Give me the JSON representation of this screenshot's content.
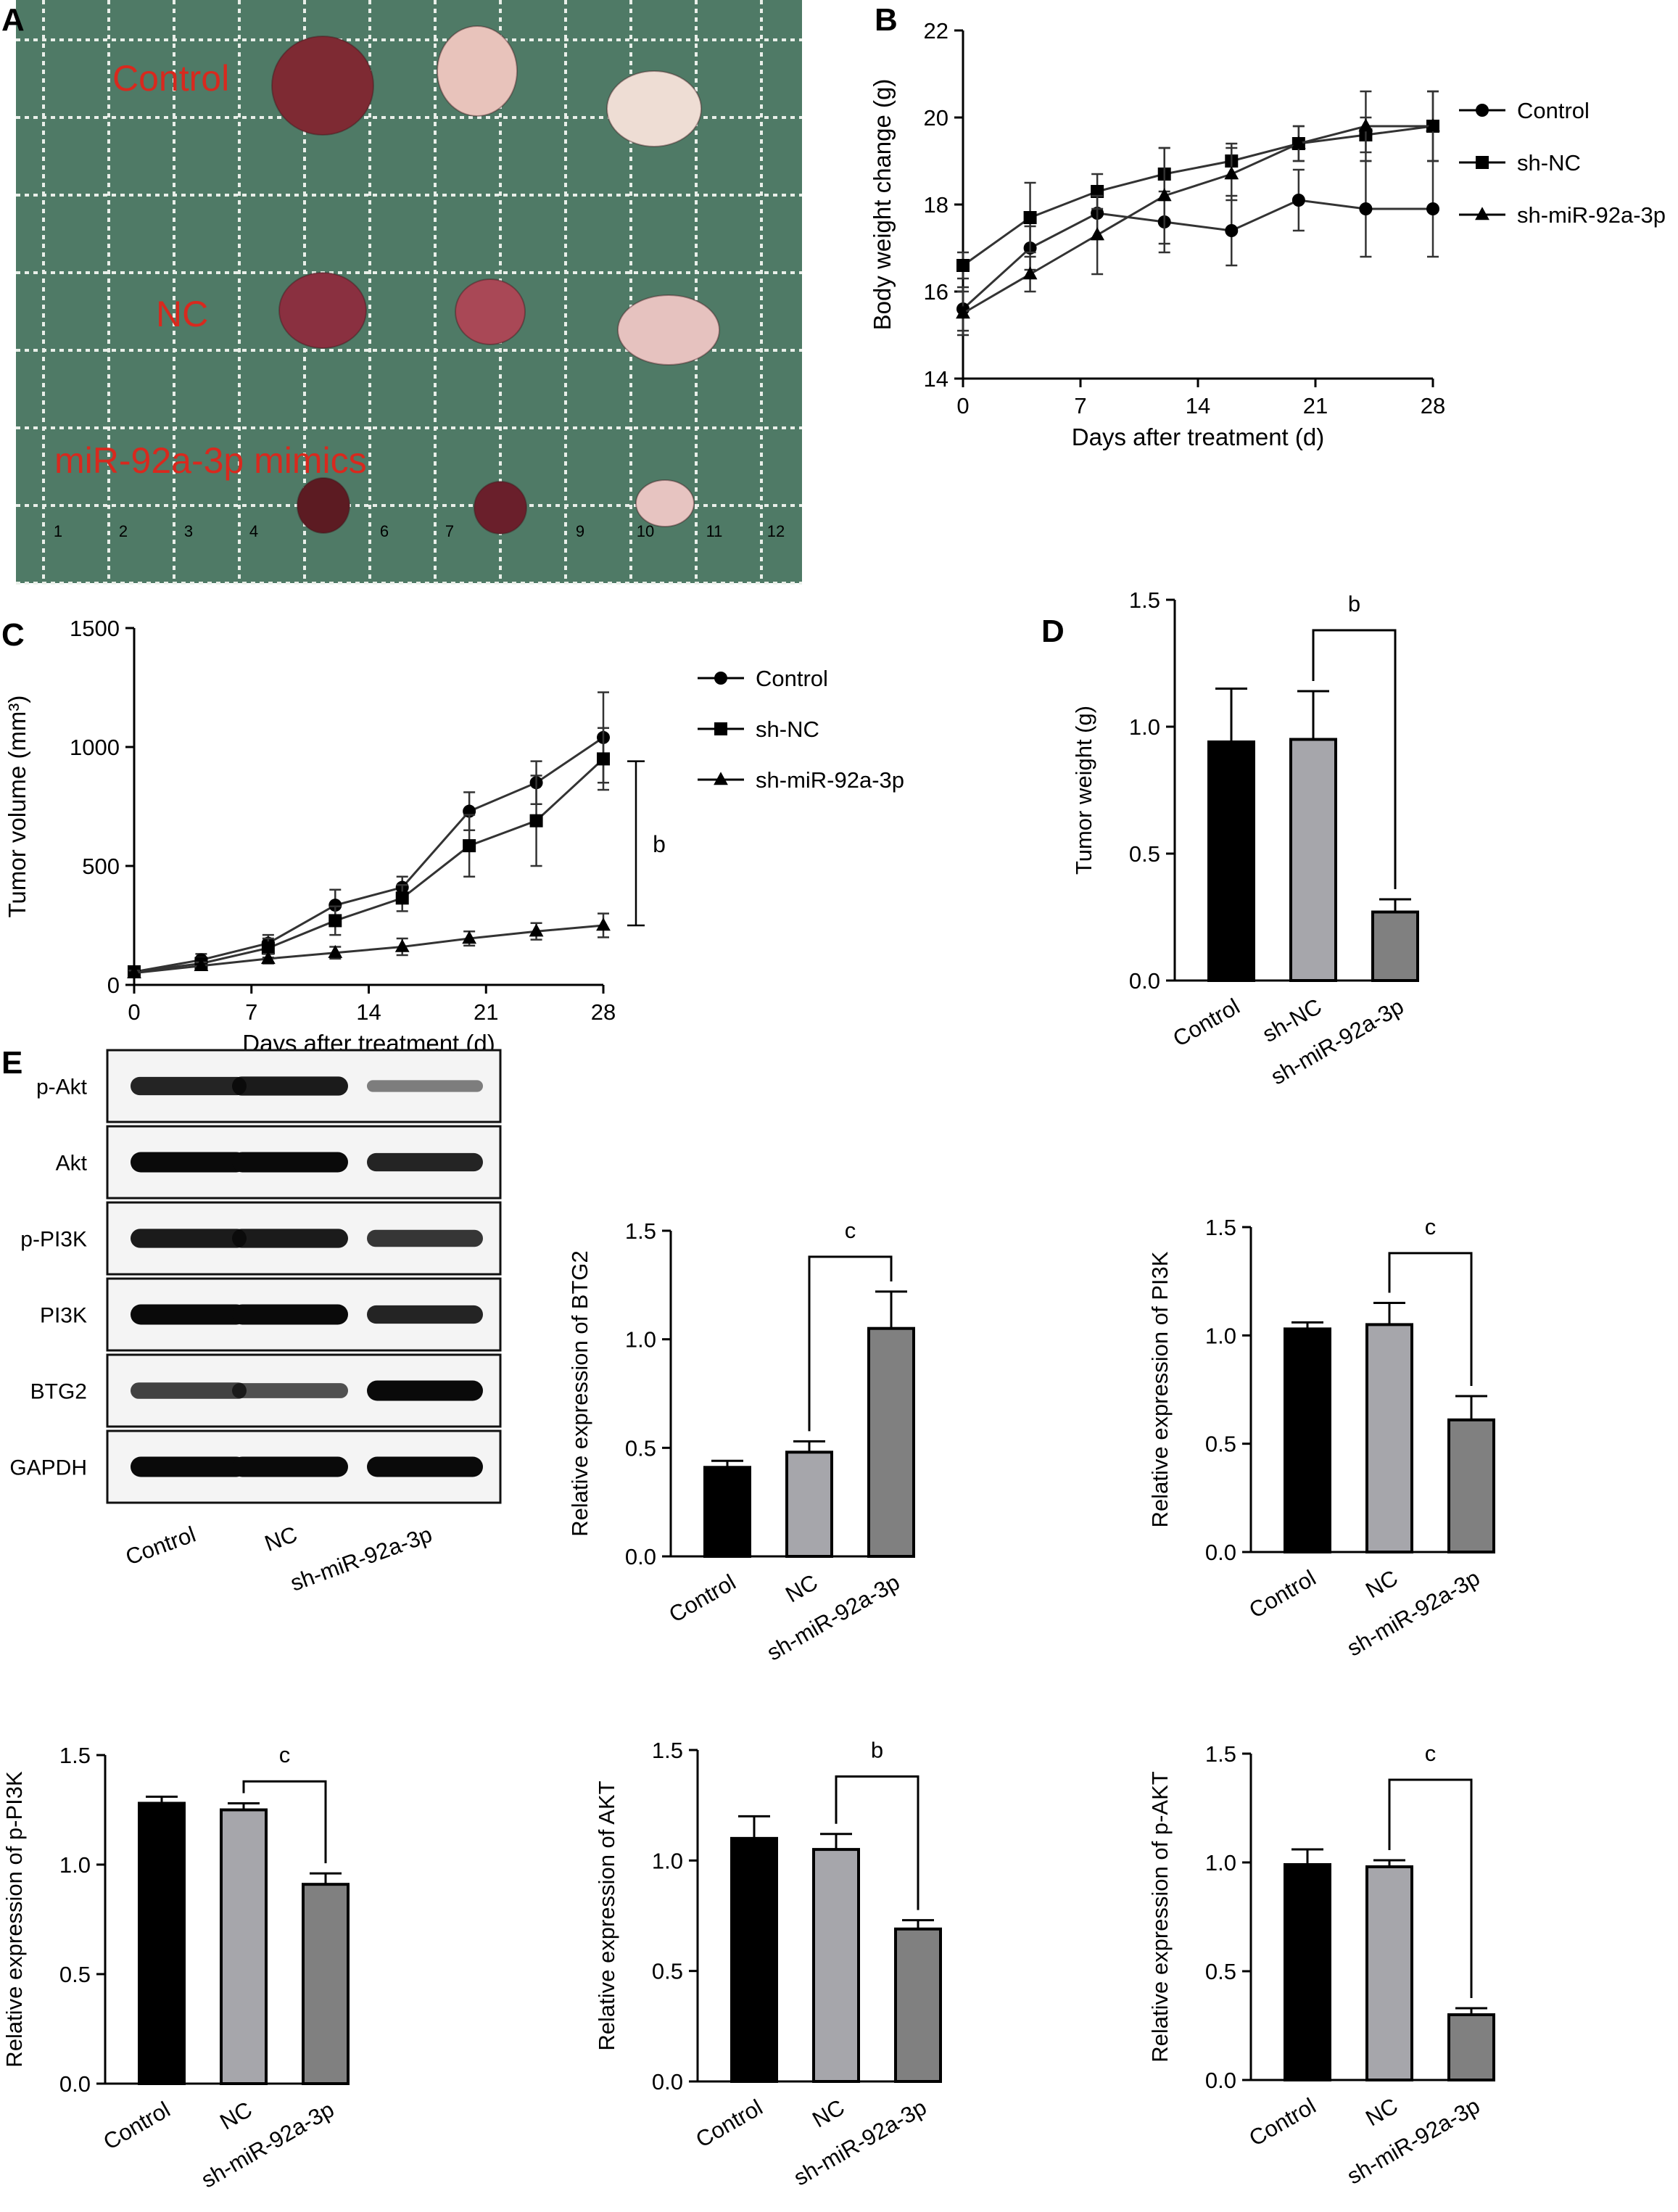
{
  "panel_letters": {
    "A": "A",
    "B": "B",
    "C": "C",
    "D": "D",
    "E": "E"
  },
  "photo": {
    "background_color": "#4f7a66",
    "labels": {
      "control": "Control",
      "nc": "NC",
      "mimics": "miR-92a-3p mimics"
    },
    "label_color": "#d8291e",
    "ruler_numbers": [
      "1",
      "2",
      "3",
      "4",
      "6",
      "7",
      "9",
      "10",
      "11",
      "12"
    ]
  },
  "western_blot": {
    "rows": [
      "p-Akt",
      "Akt",
      "p-PI3K",
      "PI3K",
      "BTG2",
      "GAPDH"
    ],
    "lanes": [
      "Control",
      "NC",
      "sh-miR-92a-3p"
    ],
    "relative_intensity": [
      [
        0.85,
        0.9,
        0.35
      ],
      [
        1.0,
        1.0,
        0.85
      ],
      [
        0.9,
        0.9,
        0.75
      ],
      [
        1.0,
        1.0,
        0.85
      ],
      [
        0.7,
        0.6,
        1.0
      ],
      [
        1.0,
        1.0,
        1.0
      ]
    ]
  },
  "chart_data": [
    {
      "id": "B",
      "type": "line",
      "xlabel": "Days after treatment (d)",
      "ylabel": "Body weight change (g)",
      "xlim": [
        0,
        28
      ],
      "ylim": [
        14,
        22
      ],
      "xticks": [
        "0",
        "7",
        "14",
        "21",
        "28"
      ],
      "yticks": [
        "14",
        "16",
        "18",
        "20",
        "22"
      ],
      "legend": "right",
      "x": [
        0,
        4,
        8,
        12,
        16,
        20,
        24,
        28
      ],
      "series": [
        {
          "name": "Control",
          "marker": "circle",
          "values": [
            15.6,
            17.0,
            17.8,
            17.6,
            17.4,
            18.1,
            17.9,
            17.9
          ],
          "errors": [
            0.5,
            0.5,
            0.6,
            0.7,
            0.8,
            0.7,
            1.1,
            1.1
          ]
        },
        {
          "name": "sh-NC",
          "marker": "square",
          "values": [
            16.6,
            17.7,
            18.3,
            18.7,
            19.0,
            19.4,
            19.6,
            19.8
          ],
          "errors": [
            0.3,
            0.8,
            0.4,
            0.6,
            0.4,
            0.4,
            0.4,
            0.8
          ]
        },
        {
          "name": "sh-miR-92a-3p",
          "marker": "triangle",
          "values": [
            15.5,
            16.4,
            17.3,
            18.2,
            18.7,
            19.4,
            19.8,
            19.8
          ],
          "errors": [
            0.5,
            0.4,
            0.9,
            1.1,
            0.6,
            0.4,
            0.8,
            0.8
          ]
        }
      ]
    },
    {
      "id": "C",
      "type": "line",
      "xlabel": "Days after treatment (d)",
      "ylabel": "Tumor volume (mm³)",
      "xlim": [
        0,
        28
      ],
      "ylim": [
        0,
        1500
      ],
      "xticks": [
        "0",
        "7",
        "14",
        "21",
        "28"
      ],
      "yticks": [
        "0",
        "500",
        "1000",
        "1500"
      ],
      "legend": "right",
      "significance": "b",
      "x": [
        0,
        4,
        8,
        12,
        16,
        20,
        24,
        28
      ],
      "series": [
        {
          "name": "Control",
          "marker": "circle",
          "values": [
            55,
            105,
            175,
            335,
            410,
            730,
            850,
            1040
          ],
          "errors": [
            10,
            25,
            35,
            65,
            45,
            80,
            90,
            190
          ]
        },
        {
          "name": "sh-NC",
          "marker": "square",
          "values": [
            55,
            90,
            155,
            270,
            365,
            585,
            690,
            950
          ],
          "errors": [
            10,
            25,
            40,
            60,
            55,
            130,
            190,
            130
          ]
        },
        {
          "name": "sh-miR-92a-3p",
          "marker": "triangle",
          "values": [
            50,
            80,
            110,
            135,
            160,
            195,
            225,
            250
          ],
          "errors": [
            10,
            15,
            20,
            25,
            35,
            30,
            35,
            50
          ]
        }
      ]
    },
    {
      "id": "D",
      "type": "bar",
      "categories": [
        "Control",
        "sh-NC",
        "sh-miR-92a-3p"
      ],
      "values": [
        0.94,
        0.95,
        0.27
      ],
      "errors": [
        0.21,
        0.19,
        0.05
      ],
      "ylabel": "Tumor weight (g)",
      "ylim": [
        0,
        1.5
      ],
      "yticks": [
        "0.0",
        "0.5",
        "1.0",
        "1.5"
      ],
      "colors": [
        "#000000",
        "#a6a6ab",
        "#808080"
      ],
      "significance": {
        "from": 1,
        "to": 2,
        "label": "b"
      }
    },
    {
      "id": "BTG2",
      "type": "bar",
      "categories": [
        "Control",
        "NC",
        "sh-miR-92a-3p"
      ],
      "values": [
        0.41,
        0.48,
        1.05
      ],
      "errors": [
        0.03,
        0.05,
        0.17
      ],
      "ylabel": "Relative expression of BTG2",
      "ylim": [
        0,
        1.5
      ],
      "yticks": [
        "0.0",
        "0.5",
        "1.0",
        "1.5"
      ],
      "colors": [
        "#000000",
        "#a6a6ab",
        "#808080"
      ],
      "significance": {
        "from": 1,
        "to": 2,
        "label": "c"
      }
    },
    {
      "id": "PI3K",
      "type": "bar",
      "categories": [
        "Control",
        "NC",
        "sh-miR-92a-3p"
      ],
      "values": [
        1.03,
        1.05,
        0.61
      ],
      "errors": [
        0.03,
        0.1,
        0.11
      ],
      "ylabel": "Relative expression of PI3K",
      "ylim": [
        0,
        1.5
      ],
      "yticks": [
        "0.0",
        "0.5",
        "1.0",
        "1.5"
      ],
      "colors": [
        "#000000",
        "#a6a6ab",
        "#808080"
      ],
      "significance": {
        "from": 1,
        "to": 2,
        "label": "c"
      }
    },
    {
      "id": "pPI3K",
      "type": "bar",
      "categories": [
        "Control",
        "NC",
        "sh-miR-92a-3p"
      ],
      "values": [
        1.28,
        1.25,
        0.91
      ],
      "errors": [
        0.03,
        0.03,
        0.05
      ],
      "ylabel": "Relative expression of p-PI3K",
      "ylim": [
        0,
        1.5
      ],
      "yticks": [
        "0.0",
        "0.5",
        "1.0",
        "1.5"
      ],
      "colors": [
        "#000000",
        "#a6a6ab",
        "#808080"
      ],
      "significance": {
        "from": 1,
        "to": 2,
        "label": "c"
      }
    },
    {
      "id": "AKT",
      "type": "bar",
      "categories": [
        "Control",
        "NC",
        "sh-miR-92a-3p"
      ],
      "values": [
        1.1,
        1.05,
        0.69
      ],
      "errors": [
        0.1,
        0.07,
        0.04
      ],
      "ylabel": "Relative expression of AKT",
      "ylim": [
        0,
        1.5
      ],
      "yticks": [
        "0.0",
        "0.5",
        "1.0",
        "1.5"
      ],
      "colors": [
        "#000000",
        "#a6a6ab",
        "#808080"
      ],
      "significance": {
        "from": 1,
        "to": 2,
        "label": "b"
      }
    },
    {
      "id": "pAKT",
      "type": "bar",
      "categories": [
        "Control",
        "NC",
        "sh-miR-92a-3p"
      ],
      "values": [
        0.99,
        0.98,
        0.3
      ],
      "errors": [
        0.07,
        0.03,
        0.03
      ],
      "ylabel": "Relative expression of p-AKT",
      "ylim": [
        0,
        1.5
      ],
      "yticks": [
        "0.0",
        "0.5",
        "1.0",
        "1.5"
      ],
      "colors": [
        "#000000",
        "#a6a6ab",
        "#808080"
      ],
      "significance": {
        "from": 1,
        "to": 2,
        "label": "c"
      }
    }
  ]
}
